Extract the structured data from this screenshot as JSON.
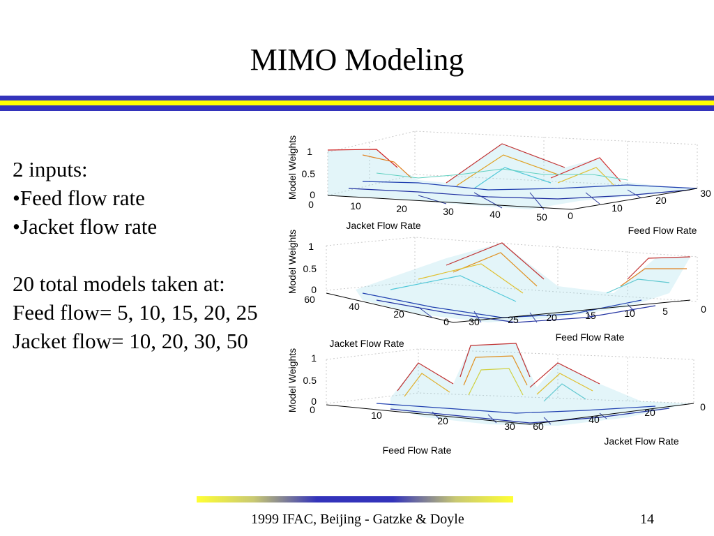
{
  "slide": {
    "title": "MIMO Modeling",
    "bullets": {
      "inputs_heading": "2 inputs:",
      "input_1": "•Feed flow rate",
      "input_2": "•Jacket flow rate",
      "models_heading": "20 total models taken at:",
      "feed_flow": "Feed flow= 5, 10, 15, 20, 25",
      "jacket_flow": "Jacket flow= 10, 20, 30, 50"
    },
    "footer": "1999 IFAC, Beijing - Gatzke & Doyle",
    "page_number": "14"
  },
  "colors": {
    "stripe_blue": "#3333bb",
    "stripe_yellow": "#ffff00"
  },
  "chart_data": [
    {
      "type": "surface",
      "zlabel": "Model Weights",
      "zticks": [
        "0",
        "0.5",
        "1"
      ],
      "xlabel": "Jacket Flow Rate",
      "xticks": [
        "0",
        "10",
        "20",
        "30",
        "40",
        "50"
      ],
      "ylabel": "Feed Flow Rate",
      "yticks": [
        "0",
        "10",
        "20",
        "30"
      ],
      "zlim": [
        0,
        1
      ],
      "xlim": [
        0,
        50
      ],
      "ylim": [
        0,
        30
      ],
      "colormap": "jet"
    },
    {
      "type": "surface",
      "zlabel": "Model Weights",
      "zticks": [
        "0",
        "0.5",
        "1"
      ],
      "xlabel": "Jacket Flow Rate",
      "xticks": [
        "60",
        "40",
        "20",
        "0"
      ],
      "ylabel": "Feed Flow Rate",
      "yticks": [
        "30",
        "25",
        "20",
        "15",
        "10",
        "5",
        "0"
      ],
      "zlim": [
        0,
        1
      ],
      "colormap": "jet"
    },
    {
      "type": "surface",
      "zlabel": "Model Weights",
      "zticks": [
        "0",
        "0.5",
        "1"
      ],
      "xlabel": "Feed Flow Rate",
      "xticks": [
        "0",
        "10",
        "20",
        "30"
      ],
      "ylabel": "Jacket Flow Rate",
      "yticks": [
        "60",
        "40",
        "20",
        "0"
      ],
      "zlim": [
        0,
        1
      ],
      "colormap": "jet"
    }
  ]
}
